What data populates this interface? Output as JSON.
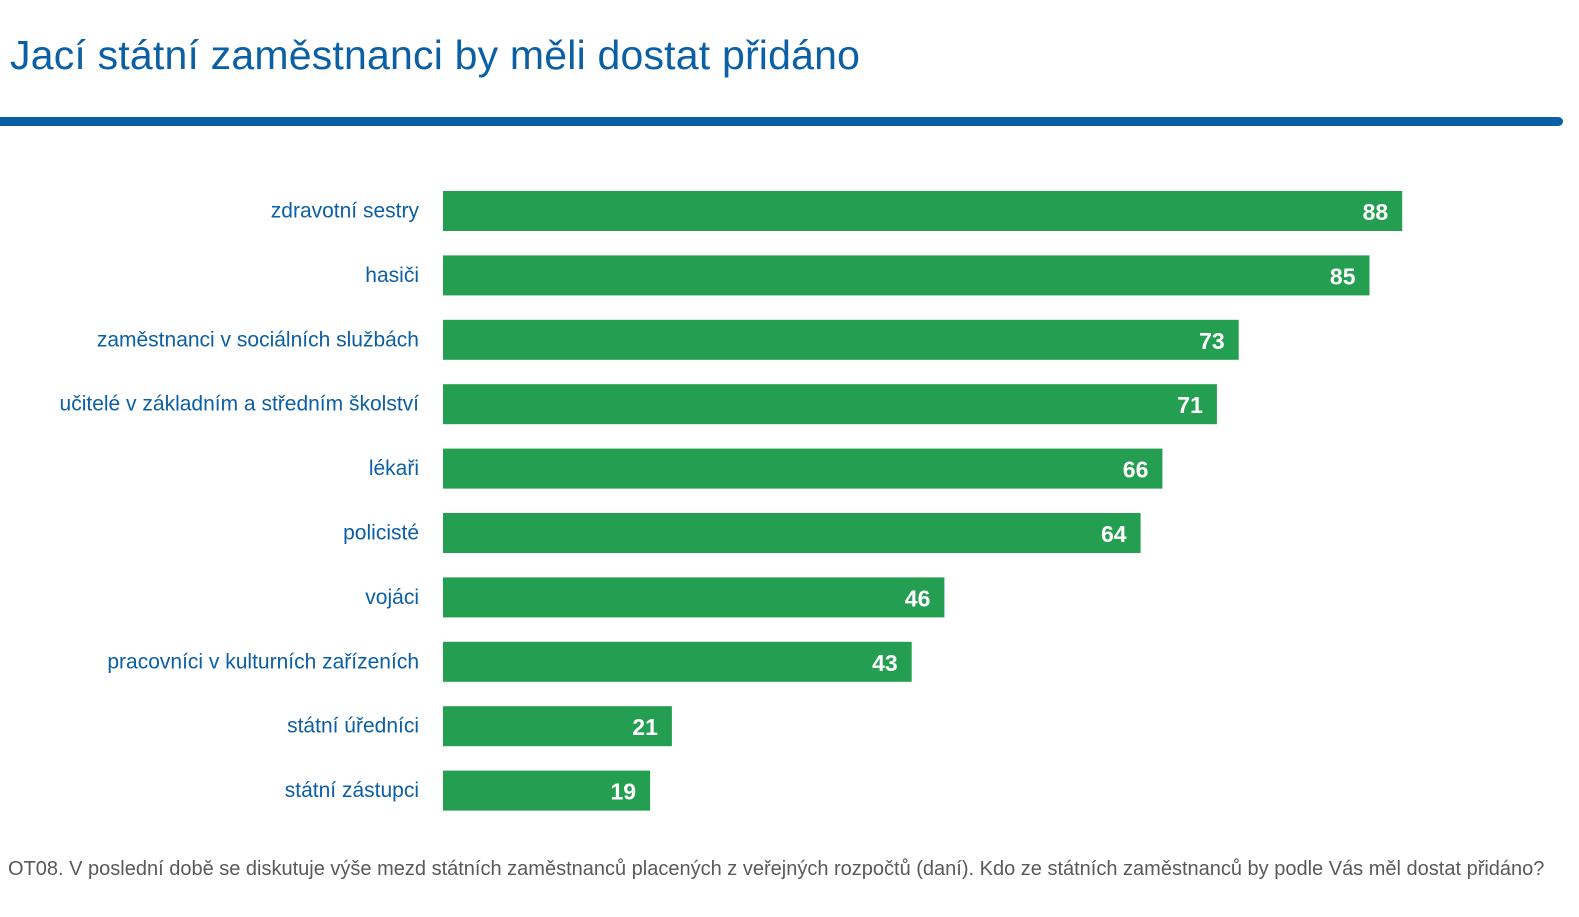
{
  "colors": {
    "title": "#0b5fa5",
    "bar": "#249e50",
    "category_label": "#0b5fa5",
    "value_label": "#ffffff",
    "footnote": "#595959"
  },
  "chart_data": {
    "type": "bar",
    "orientation": "horizontal",
    "title": "Jací státní zaměstnanci by měli dostat přidáno",
    "categories": [
      "zdravotní sestry",
      "hasiči",
      "zaměstnanci v sociálních službách",
      "učitelé v základním a středním školství",
      "lékaři",
      "policisté",
      "vojáci",
      "pracovníci v kulturních zařízeních",
      "státní úředníci",
      "státní zástupci"
    ],
    "values": [
      88,
      85,
      73,
      71,
      66,
      64,
      46,
      43,
      21,
      19
    ],
    "xlim": [
      0,
      100
    ],
    "grid": false,
    "legend": "none",
    "data_labels": "inside-end"
  },
  "footnote": "OT08. V poslední době se diskutuje výše mezd státních zaměstnanců placených z veřejných rozpočtů (daní). Kdo ze státních zaměstnanců by podle Vás měl dostat přidáno?"
}
